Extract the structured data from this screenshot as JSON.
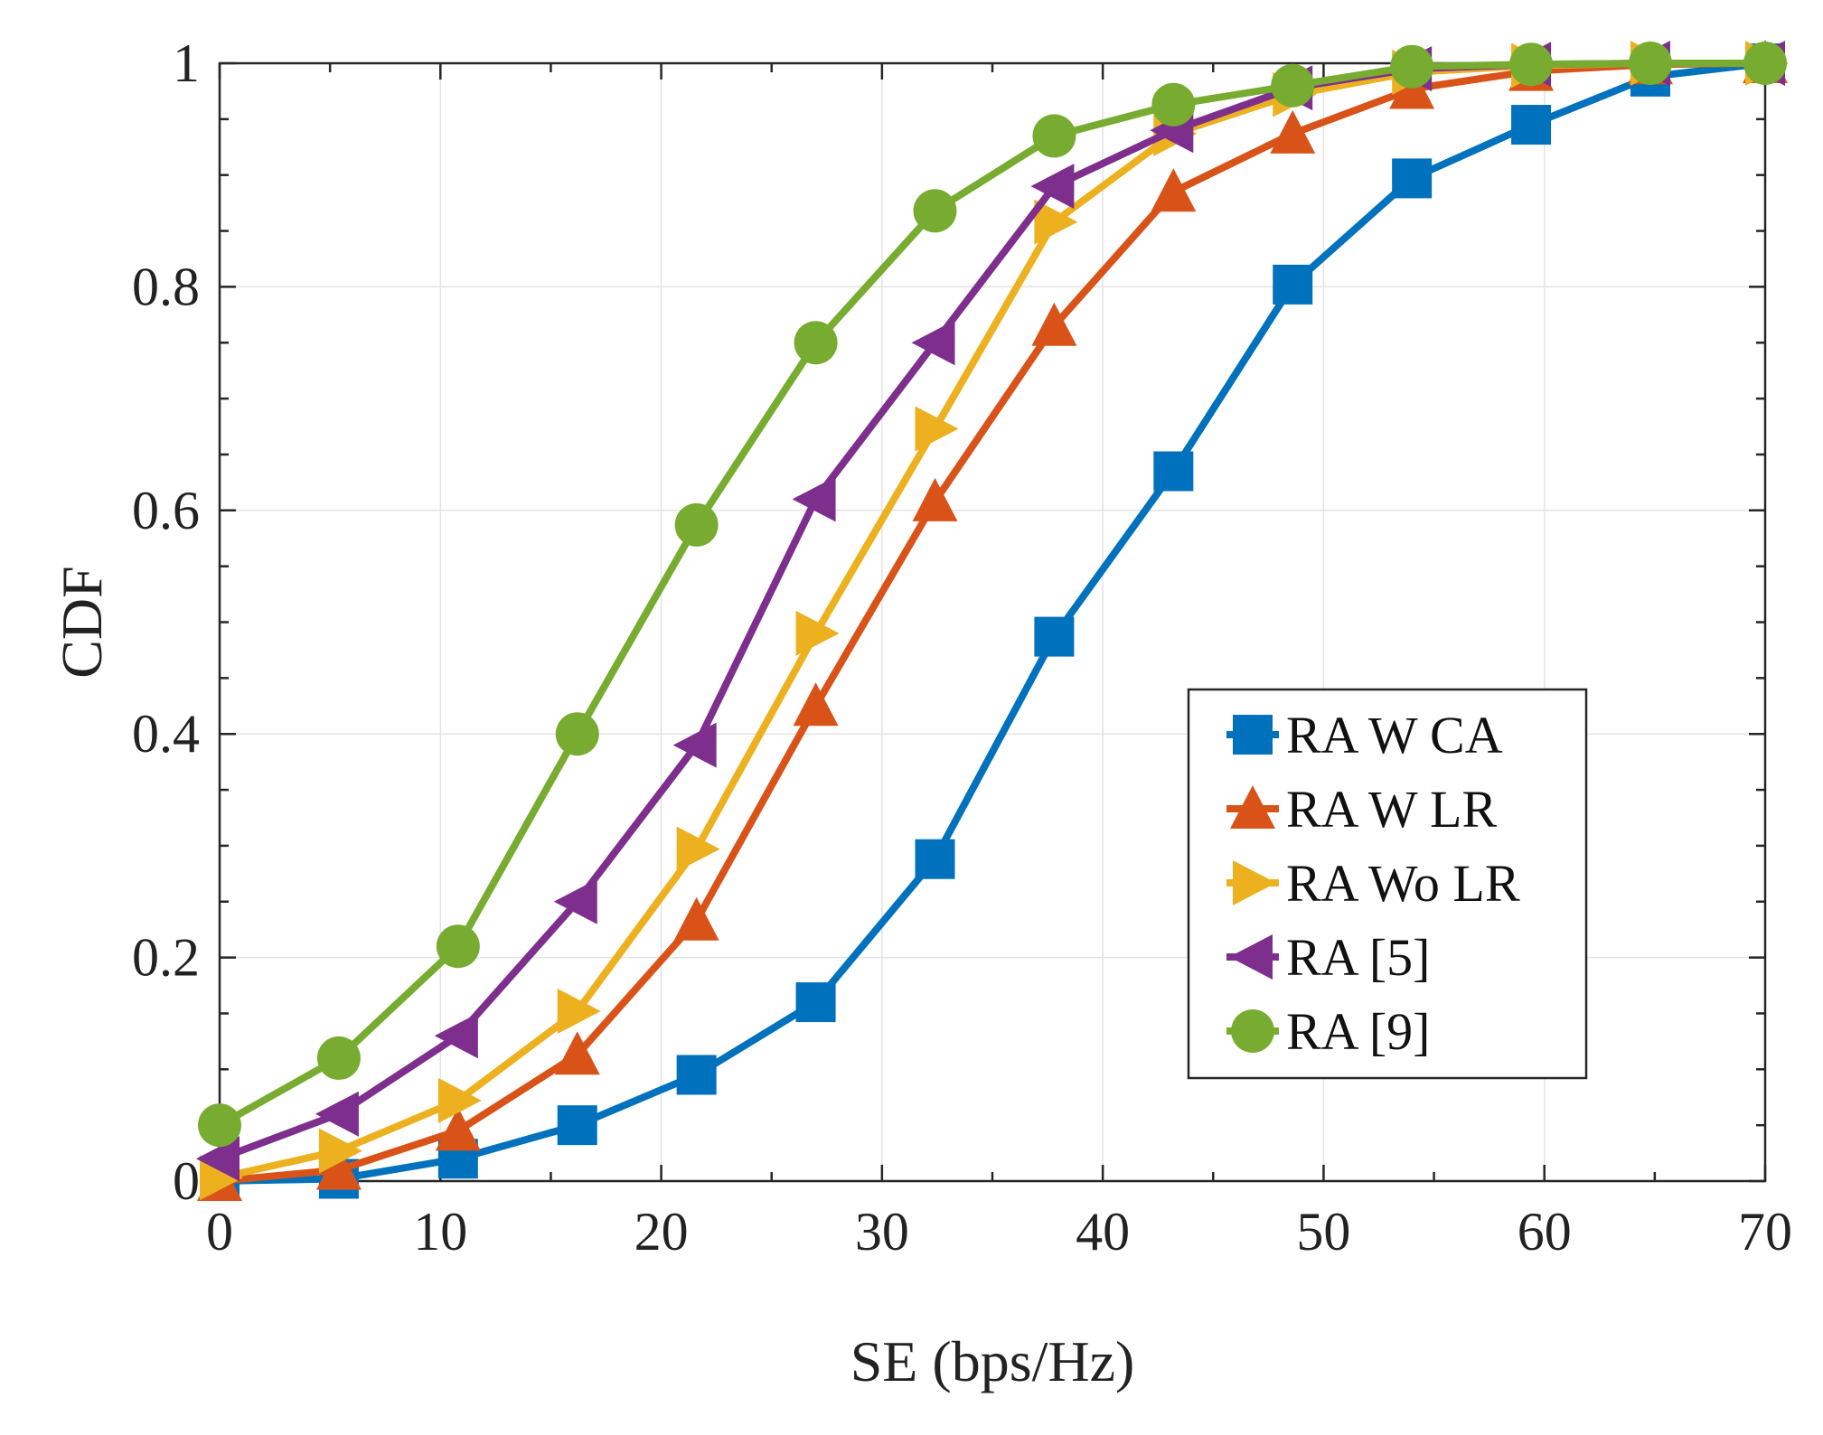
{
  "chart_data": {
    "type": "line",
    "title": "",
    "xlabel": "SE (bps/Hz)",
    "ylabel": "CDF",
    "xlim": [
      0,
      70
    ],
    "ylim": [
      0,
      1
    ],
    "grid": true,
    "legend_position": "center-right",
    "xticks": [
      0,
      10,
      20,
      30,
      40,
      50,
      60,
      70
    ],
    "xtick_labels": [
      "0",
      "10",
      "20",
      "30",
      "40",
      "50",
      "60",
      "70"
    ],
    "yticks": [
      0,
      0.2,
      0.4,
      0.6,
      0.8,
      1
    ],
    "ytick_labels": [
      "0",
      "0.2",
      "0.4",
      "0.6",
      "0.8",
      "1"
    ],
    "x": [
      0,
      5.4,
      10.8,
      16.2,
      21.6,
      27,
      32.4,
      37.8,
      43.2,
      48.6,
      54,
      59.4,
      64.8,
      70
    ],
    "series": [
      {
        "name": "RA W CA",
        "color": "#0072BD",
        "marker": "square",
        "values": [
          0.0,
          0.002,
          0.02,
          0.05,
          0.095,
          0.16,
          0.288,
          0.487,
          0.635,
          0.802,
          0.897,
          0.945,
          0.988,
          1.0
        ]
      },
      {
        "name": "RA W LR",
        "color": "#D95319",
        "marker": "triangle-up",
        "values": [
          0.0,
          0.01,
          0.045,
          0.113,
          0.233,
          0.425,
          0.608,
          0.765,
          0.885,
          0.937,
          0.977,
          0.993,
          0.999,
          1.0
        ]
      },
      {
        "name": "RA Wo LR",
        "color": "#EDB120",
        "marker": "triangle-right",
        "values": [
          0.003,
          0.027,
          0.072,
          0.152,
          0.297,
          0.49,
          0.673,
          0.858,
          0.937,
          0.972,
          0.992,
          0.998,
          1.0,
          1.0
        ]
      },
      {
        "name": "RA [5]",
        "color": "#7E2F8E",
        "marker": "triangle-left",
        "values": [
          0.02,
          0.06,
          0.13,
          0.25,
          0.39,
          0.61,
          0.75,
          0.89,
          0.94,
          0.978,
          0.995,
          0.999,
          1.0,
          1.0
        ]
      },
      {
        "name": "RA [9]",
        "color": "#77AC30",
        "marker": "circle",
        "values": [
          0.05,
          0.11,
          0.21,
          0.4,
          0.587,
          0.75,
          0.868,
          0.935,
          0.963,
          0.98,
          0.997,
          0.999,
          1.0,
          1.0
        ]
      }
    ]
  }
}
